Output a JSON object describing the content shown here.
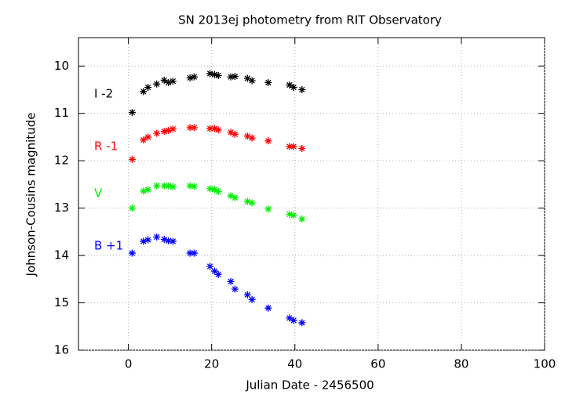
{
  "chart_data": {
    "type": "scatter",
    "title": "SN 2013ej photometry from RIT Observatory",
    "x_label": "Julian Date - 2456500",
    "y_label": "Johnson-Cousins magnitude",
    "x": [
      0.9,
      3.6,
      4.7,
      6.8,
      8.6,
      9.6,
      10.7,
      14.8,
      15.8,
      19.6,
      20.7,
      21.6,
      24.6,
      25.6,
      28.6,
      29.7,
      33.6,
      38.7,
      39.7,
      41.7
    ],
    "series": [
      {
        "name": "I -2",
        "color": "#000000",
        "values": [
          10.98,
          10.54,
          10.45,
          10.38,
          10.3,
          10.35,
          10.32,
          10.25,
          10.23,
          10.16,
          10.18,
          10.2,
          10.23,
          10.22,
          10.26,
          10.31,
          10.35,
          10.4,
          10.45,
          10.5
        ]
      },
      {
        "name": "R -1",
        "color": "#ff0000",
        "values": [
          11.97,
          11.56,
          11.5,
          11.42,
          11.38,
          11.36,
          11.33,
          11.3,
          11.3,
          11.32,
          11.32,
          11.35,
          11.4,
          11.44,
          11.48,
          11.52,
          11.58,
          11.7,
          11.7,
          11.74
        ]
      },
      {
        "name": "V",
        "color": "#00ee00",
        "values": [
          13.0,
          12.64,
          12.61,
          12.53,
          12.53,
          12.53,
          12.55,
          12.53,
          12.54,
          12.59,
          12.61,
          12.65,
          12.74,
          12.78,
          12.86,
          12.89,
          13.02,
          13.13,
          13.15,
          13.23
        ]
      },
      {
        "name": "B +1",
        "color": "#0000ff",
        "values": [
          13.95,
          13.7,
          13.67,
          13.61,
          13.66,
          13.69,
          13.7,
          13.95,
          13.95,
          14.23,
          14.33,
          14.4,
          14.55,
          14.71,
          14.83,
          14.93,
          15.11,
          15.32,
          15.37,
          15.42
        ]
      }
    ],
    "xlim": [
      -12,
      100
    ],
    "xticks": [
      0,
      20,
      40,
      60,
      80,
      100
    ],
    "ylim": [
      16,
      9.4
    ],
    "yticks": [
      10,
      11,
      12,
      13,
      14,
      15,
      16
    ],
    "grid": true
  }
}
